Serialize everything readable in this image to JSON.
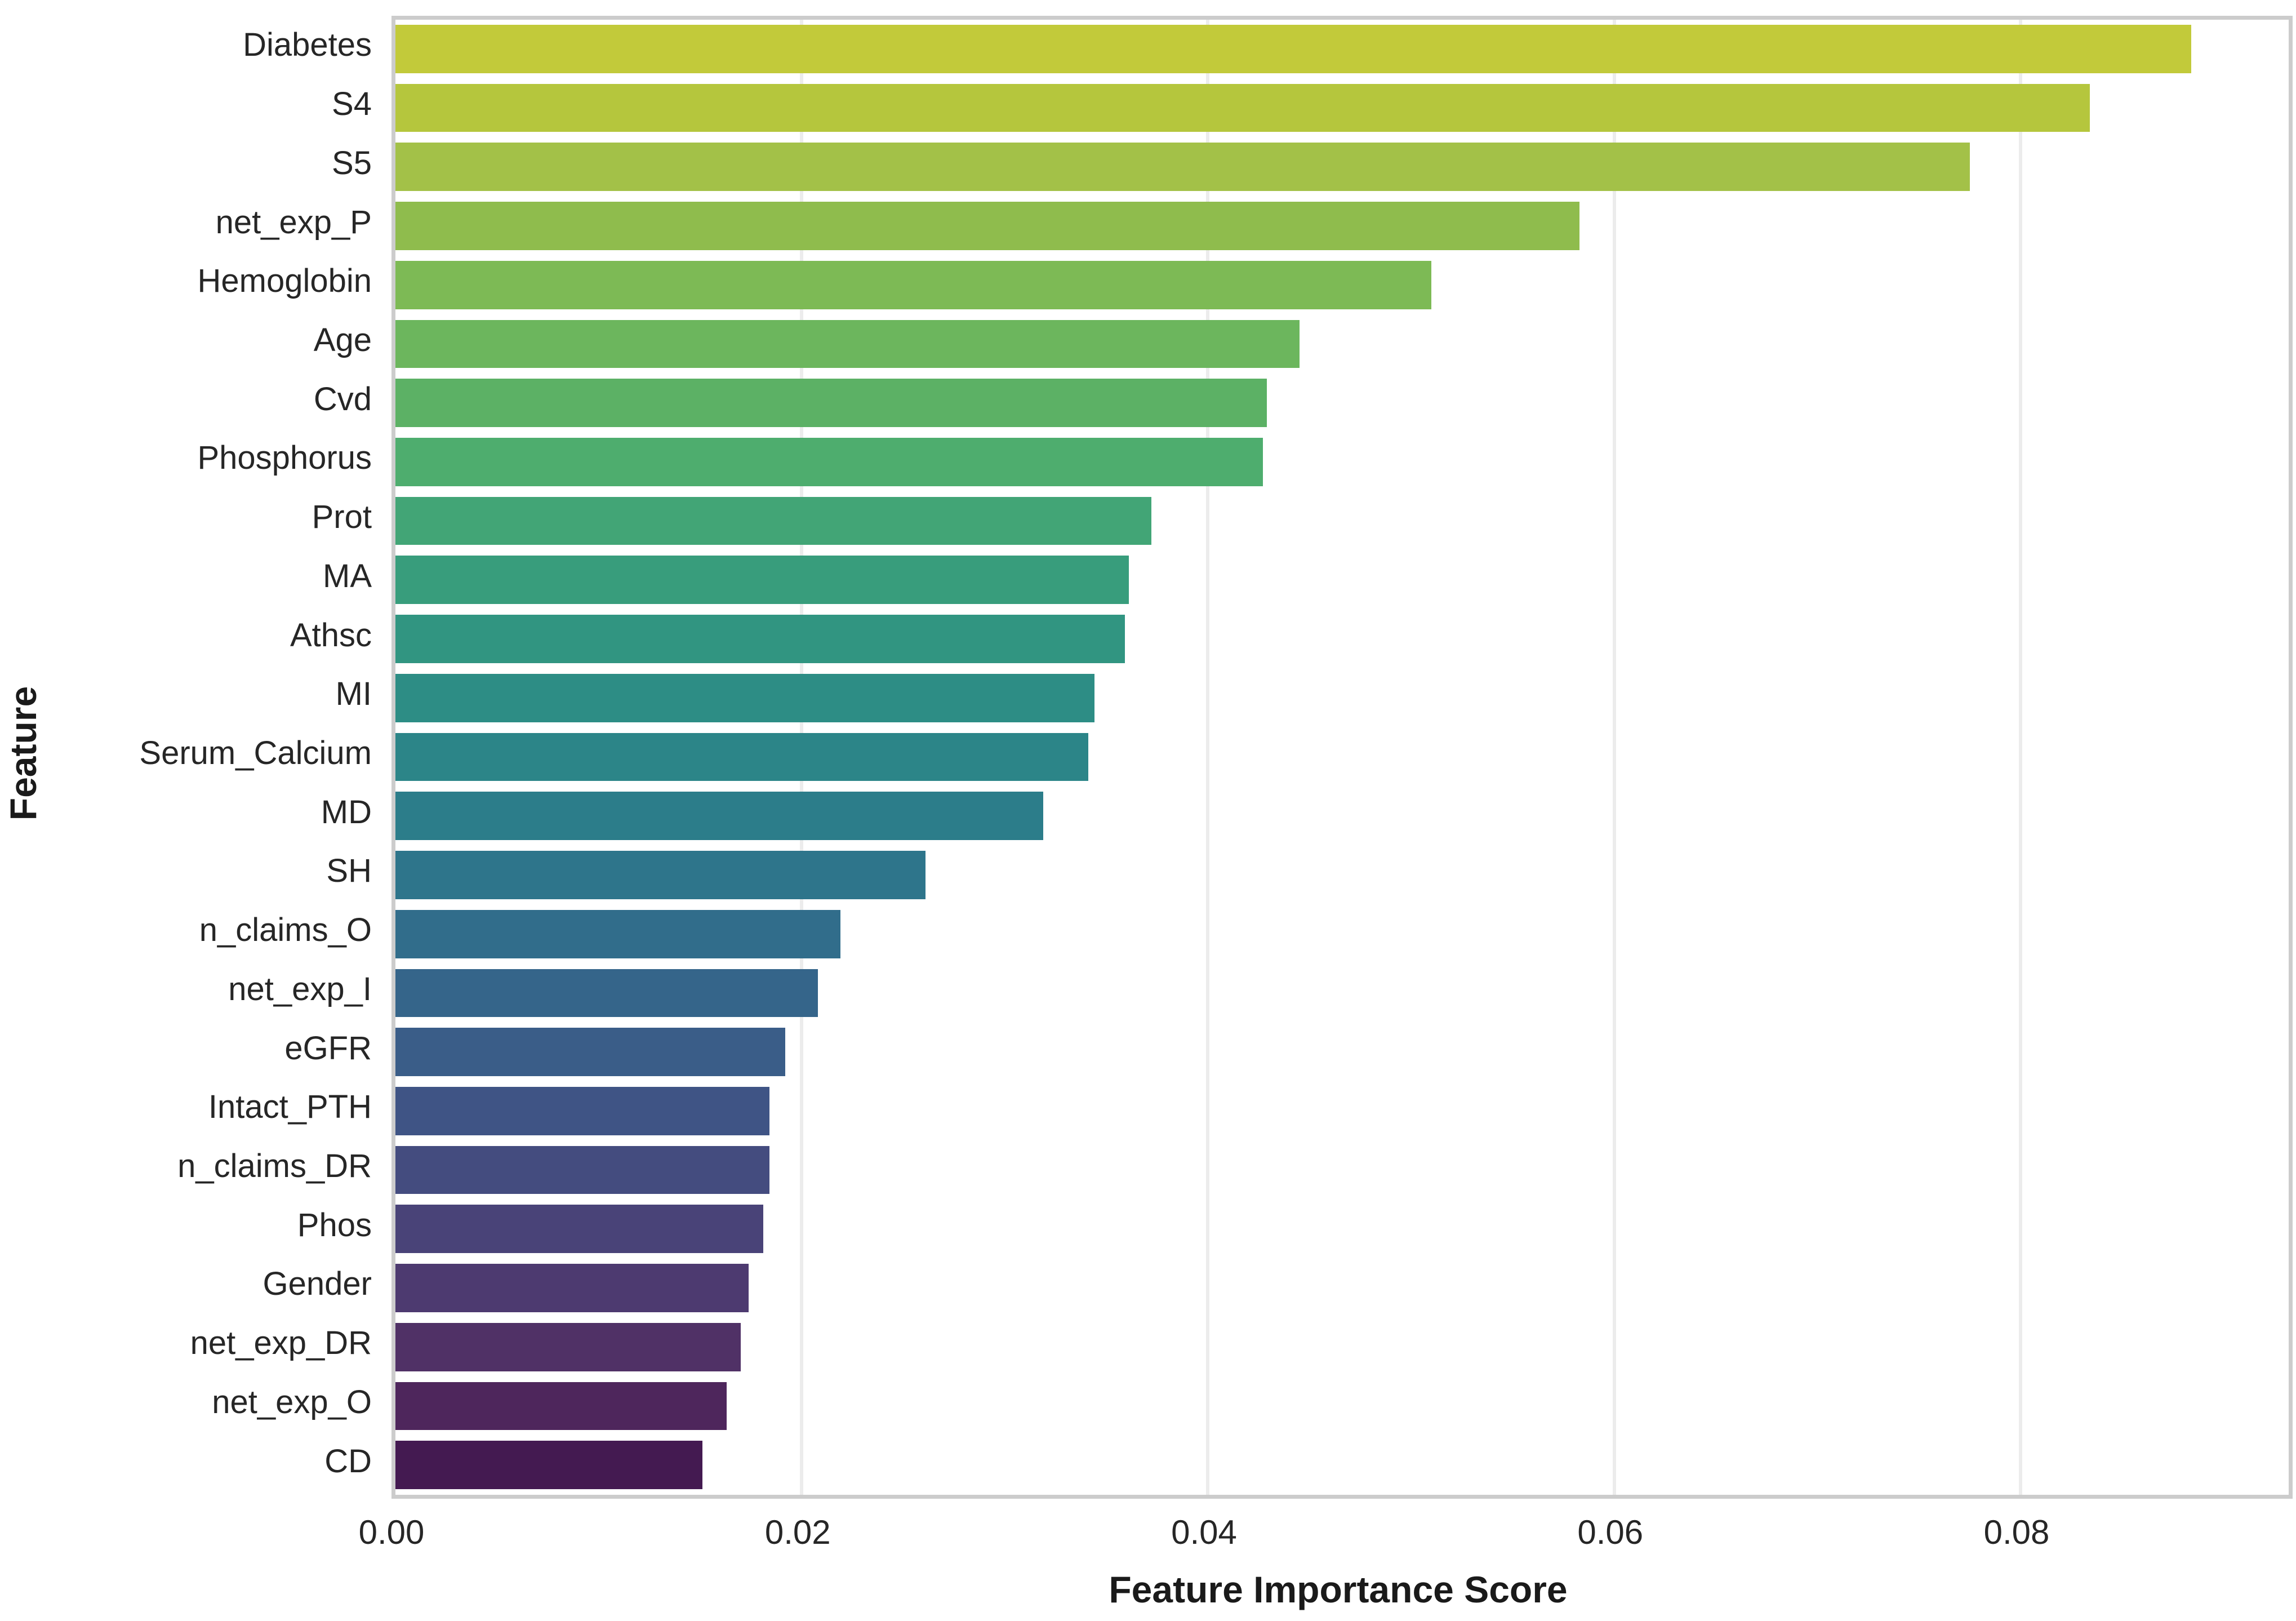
{
  "chart_data": {
    "type": "bar",
    "orientation": "horizontal",
    "title": "",
    "xlabel": "Feature Importance Score",
    "ylabel": "Feature",
    "legend": "none",
    "grid": "vertical, light gray, behind bars",
    "background_color": "#ffffff",
    "axis_border_color": "#cccccc",
    "gridline_color": "#ececec",
    "text_color": "#262626",
    "xlim": [
      0,
      0.0932
    ],
    "x_ticks": [
      {
        "value": 0.0,
        "label": "0.00"
      },
      {
        "value": 0.02,
        "label": "0.02"
      },
      {
        "value": 0.04,
        "label": "0.04"
      },
      {
        "value": 0.06,
        "label": "0.06"
      },
      {
        "value": 0.08,
        "label": "0.08"
      }
    ],
    "categories": [
      "Diabetes",
      "S4",
      "S5",
      "net_exp_P",
      "Hemoglobin",
      "Age",
      "Cvd",
      "Phosphorus",
      "Prot",
      "MA",
      "Athsc",
      "MI",
      "Serum_Calcium",
      "MD",
      "SH",
      "n_claims_O",
      "net_exp_I",
      "eGFR",
      "Intact_PTH",
      "n_claims_DR",
      "Phos",
      "Gender",
      "net_exp_DR",
      "net_exp_O",
      "CD"
    ],
    "values": [
      0.0884,
      0.0834,
      0.0775,
      0.0583,
      0.051,
      0.0445,
      0.0429,
      0.0427,
      0.0372,
      0.0361,
      0.0359,
      0.0344,
      0.0341,
      0.0319,
      0.0261,
      0.0219,
      0.0208,
      0.0192,
      0.0184,
      0.0184,
      0.0181,
      0.0174,
      0.017,
      0.0163,
      0.0151
    ],
    "bar_colors": [
      "#c2ca3a",
      "#b5c63d",
      "#a3c148",
      "#8fbc4d",
      "#7dba55",
      "#6cb65d",
      "#5cb165",
      "#4ead6e",
      "#42a576",
      "#389d7c",
      "#319581",
      "#2d8d85",
      "#2c8588",
      "#2c7d8a",
      "#2e758b",
      "#316d8b",
      "#35658a",
      "#3a5d88",
      "#3f5485",
      "#444c7f",
      "#494378",
      "#4d3a70",
      "#503166",
      "#4e265c",
      "#441a51"
    ],
    "colormap": "viridis (yellow-green top to dark purple bottom)"
  }
}
